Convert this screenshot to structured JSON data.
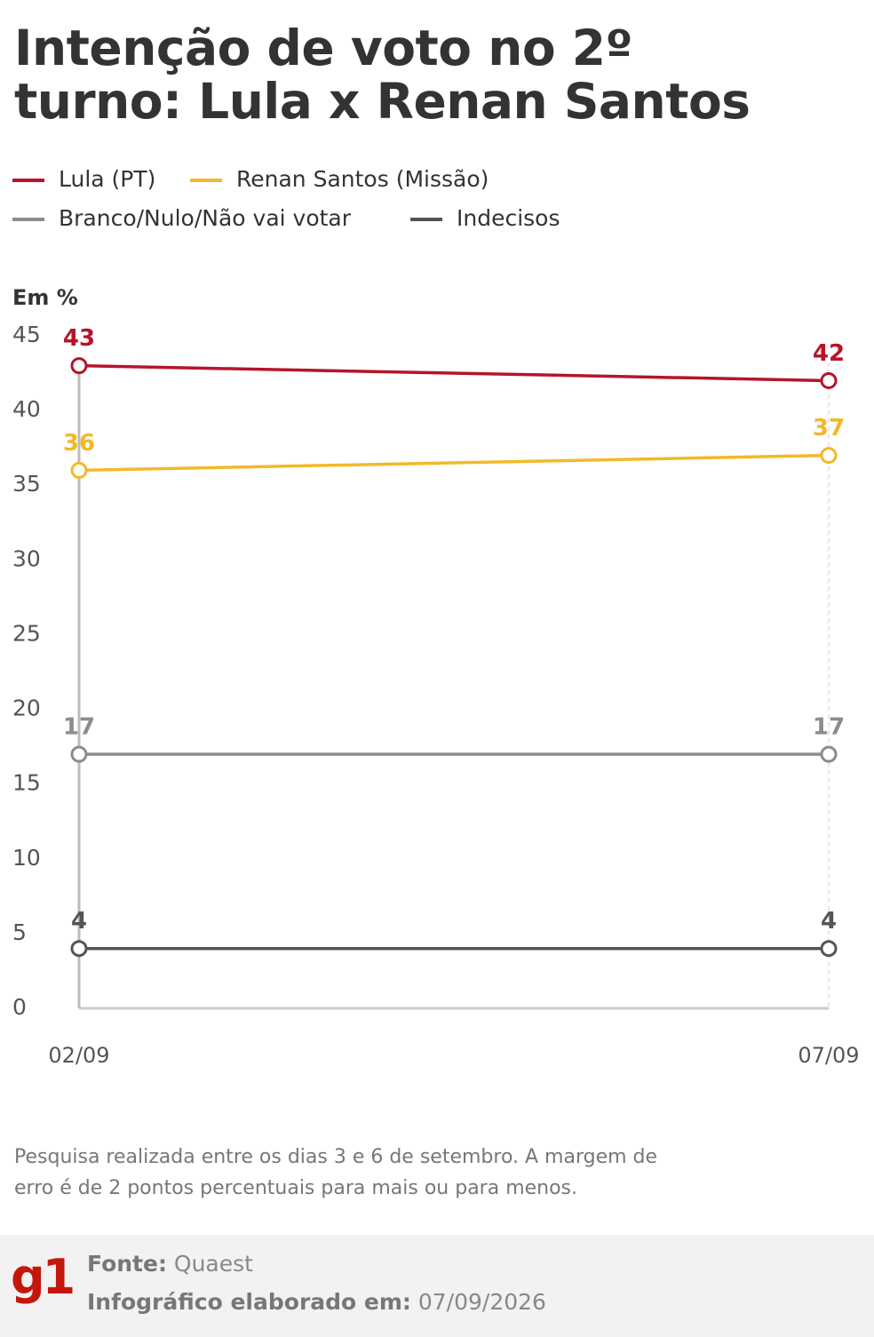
{
  "chart_data": {
    "type": "line",
    "title": "Intenção de voto no 2º turno: Lula x Renan Santos",
    "y_label": "Em %",
    "categories": [
      "02/09",
      "07/09"
    ],
    "series": [
      {
        "name": "Lula (PT)",
        "color": "#b5152b",
        "values": [
          43,
          42
        ]
      },
      {
        "name": "Renan Santos (Missão)",
        "color": "#f2b928",
        "values": [
          36,
          37
        ]
      },
      {
        "name": "Branco/Nulo/Não vai votar",
        "color": "#8c8c8c",
        "values": [
          17,
          17
        ]
      },
      {
        "name": "Indecisos",
        "color": "#555555",
        "values": [
          4,
          4
        ]
      }
    ],
    "ylim": [
      0,
      45
    ],
    "yticks": [
      0,
      5,
      10,
      15,
      20,
      25,
      30,
      35,
      40,
      45
    ],
    "grid": false,
    "note": "Pesquisa realizada entre os dias 3 e 6 de setembro. A margem de erro é de 2 pontos percentuais para mais ou para menos.",
    "footer": {
      "logo": "g1",
      "source_label": "Fonte:",
      "source": "Quaest",
      "date_label": "Infográfico elaborado em:",
      "date": "07/09/2026"
    }
  }
}
